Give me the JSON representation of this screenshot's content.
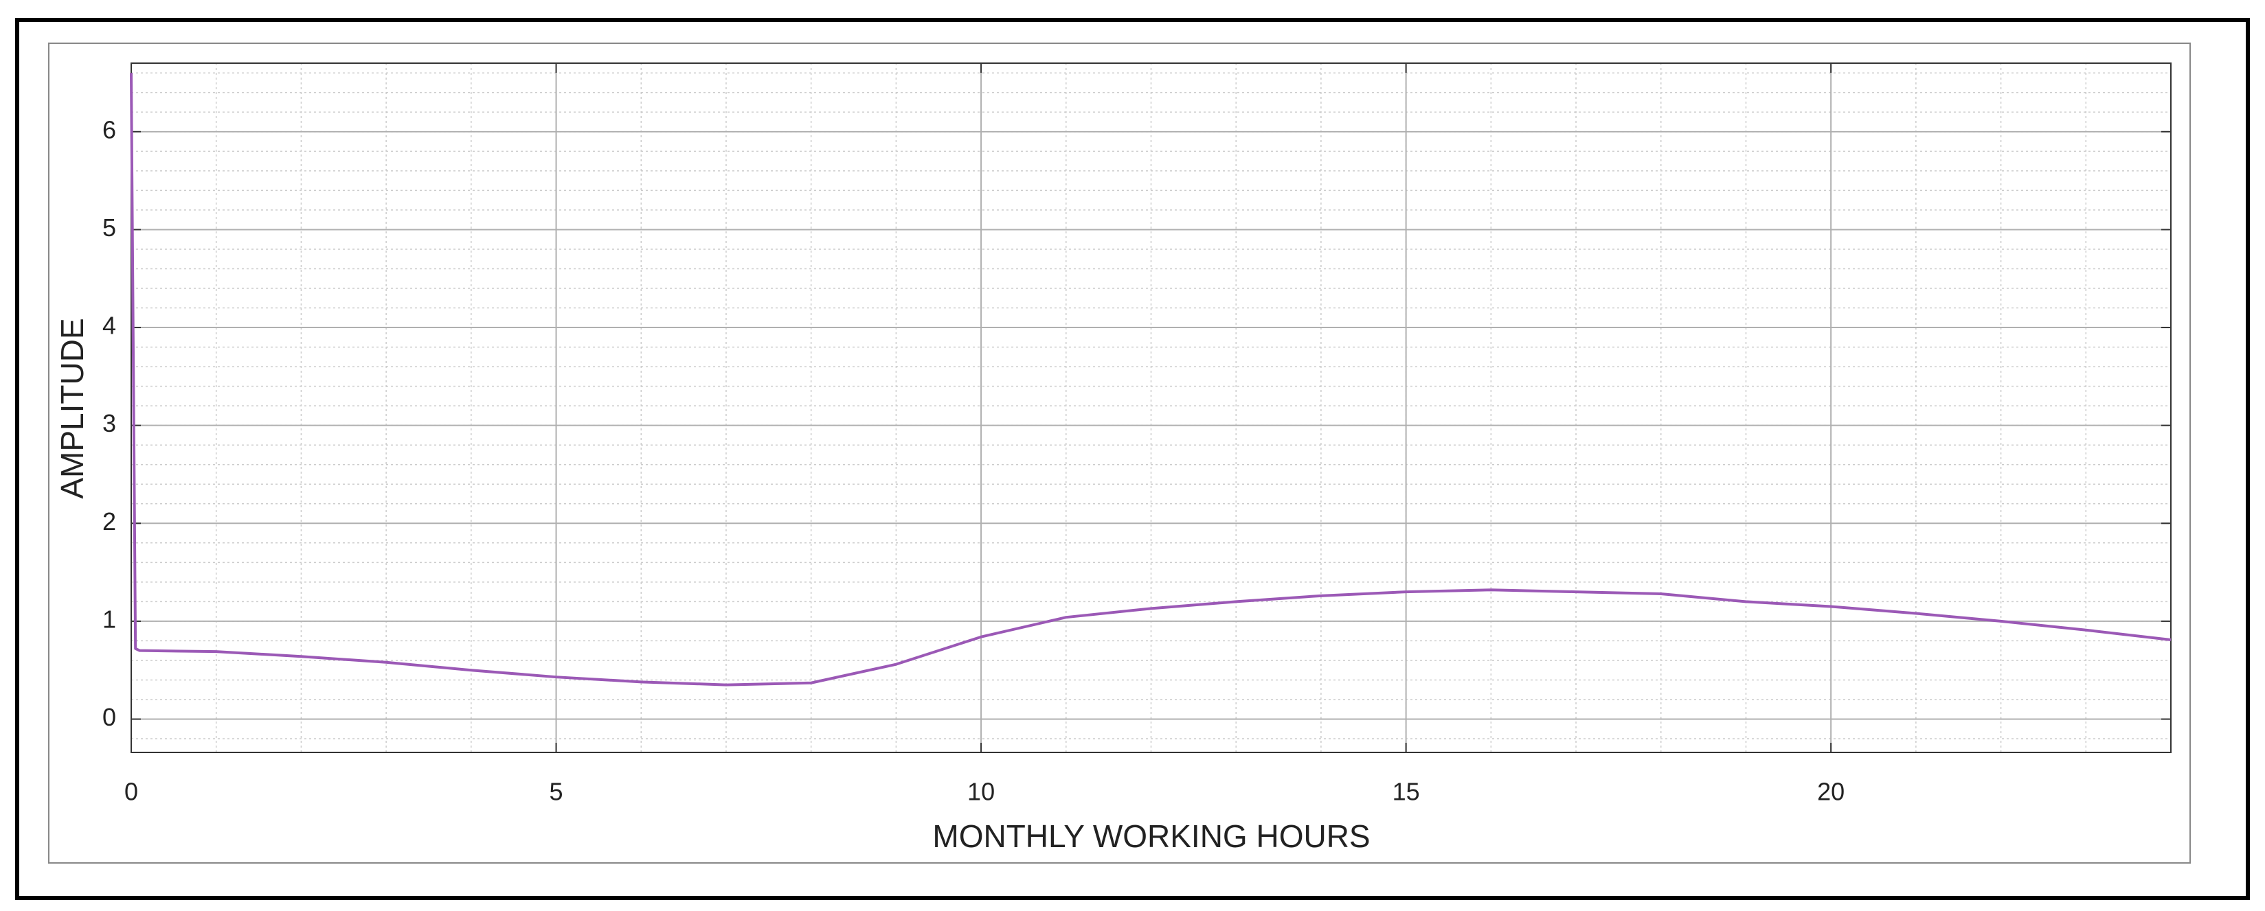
{
  "chart_data": {
    "type": "line",
    "xlabel": "MONTHLY WORKING HOURS",
    "ylabel": "AMPLITUDE",
    "xlim": [
      0,
      24
    ],
    "ylim": [
      -0.34,
      6.7
    ],
    "xticks": [
      0,
      5,
      10,
      15,
      20
    ],
    "yticks": [
      0,
      1,
      2,
      3,
      4,
      5,
      6
    ],
    "grid": true,
    "minor_grid": true,
    "series": [
      {
        "color": "#9b59b6",
        "x": [
          0,
          0.05,
          0.1,
          1,
          2,
          3,
          4,
          5,
          6,
          7,
          8,
          9,
          10,
          11,
          12,
          13,
          14,
          15,
          16,
          17,
          18,
          19,
          20,
          21,
          22,
          23,
          24
        ],
        "values": [
          6.6,
          0.72,
          0.7,
          0.69,
          0.64,
          0.58,
          0.5,
          0.43,
          0.38,
          0.35,
          0.37,
          0.56,
          0.84,
          1.04,
          1.13,
          1.2,
          1.26,
          1.3,
          1.32,
          1.3,
          1.28,
          1.2,
          1.15,
          1.08,
          1.0,
          0.91,
          0.81
        ]
      }
    ]
  }
}
